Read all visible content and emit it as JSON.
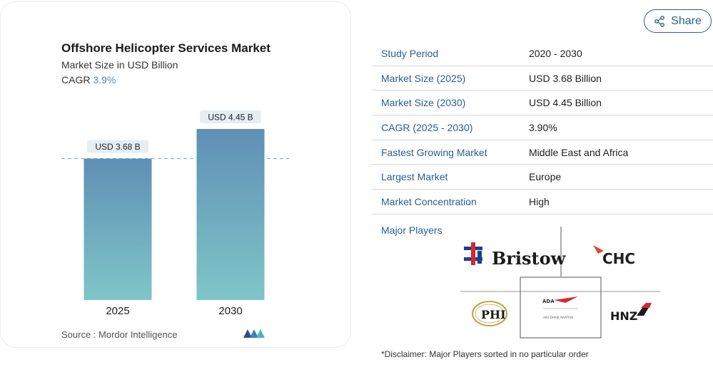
{
  "chart": {
    "title": "Offshore Helicopter Services Market",
    "subtitle": "Market Size in USD Billion",
    "cagr_label": "CAGR",
    "cagr_value": "3.9%",
    "source": "Source :  Mordor Intelligence",
    "bar_color_top": "#5f8fb5",
    "bar_color_bottom": "#7fc6c8"
  },
  "chart_data": {
    "type": "bar",
    "categories": [
      "2025",
      "2030"
    ],
    "values": [
      3.68,
      4.45
    ],
    "data_labels": [
      "USD 3.68 B",
      "USD 4.45 B"
    ],
    "title": "Offshore Helicopter Services Market",
    "subtitle": "Market Size in USD Billion",
    "xlabel": "",
    "ylabel": "",
    "ylim": [
      0,
      4.45
    ],
    "grid": false,
    "reference_line": 3.68
  },
  "share": {
    "label": "Share",
    "icon": "share-icon"
  },
  "table": {
    "rows": [
      {
        "key": "Study Period",
        "value": "2020 - 2030"
      },
      {
        "key": "Market Size (2025)",
        "value": "USD 3.68 Billion"
      },
      {
        "key": "Market Size (2030)",
        "value": "USD 4.45 Billion"
      },
      {
        "key": "CAGR (2025 - 2030)",
        "value": "3.90%"
      },
      {
        "key": "Fastest Growing Market",
        "value": "Middle East and Africa"
      },
      {
        "key": "Largest Market",
        "value": "Europe"
      },
      {
        "key": "Market Concentration",
        "value": "High"
      }
    ]
  },
  "players": {
    "label": "Major Players",
    "logos": [
      "Bristow",
      "CHC",
      "PHI",
      "ADA",
      "HNZ"
    ],
    "ada_caption": "ABU DHABI AVIATION"
  },
  "disclaimer": "*Disclaimer: Major Players sorted in no particular order"
}
